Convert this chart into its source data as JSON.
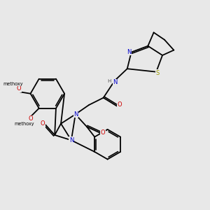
{
  "bg_color": "#e8e8e8",
  "bond_color": "#000000",
  "bond_width": 1.3,
  "atom_colors": {
    "N": "#0000cc",
    "O": "#cc0000",
    "S": "#999900",
    "H": "#555555",
    "C": "#000000"
  },
  "font_size": 6.0,
  "small_font": 5.2
}
